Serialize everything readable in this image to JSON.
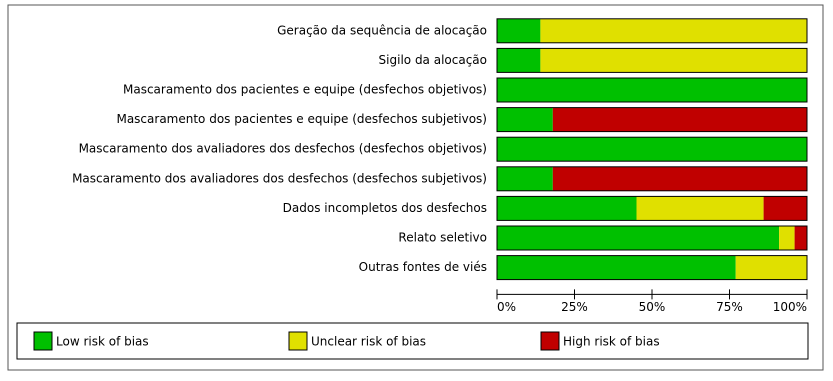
{
  "chart_data": {
    "type": "stacked-bar-horizontal",
    "categories": [
      "Geração da sequência de alocação",
      "Sigilo da alocação",
      "Mascaramento dos pacientes e equipe (desfechos objetivos)",
      "Mascaramento dos pacientes e equipe (desfechos subjetivos)",
      "Mascaramento dos avaliadores dos desfechos (desfechos objetivos)",
      "Mascaramento dos avaliadores dos desfechos (desfechos subjetivos)",
      "Dados incompletos dos desfechos",
      "Relato seletivo",
      "Outras fontes de viés"
    ],
    "series": [
      {
        "name": "Low risk of bias",
        "color": "#00c000",
        "values": [
          14,
          14,
          100,
          18,
          100,
          18,
          45,
          91,
          77
        ]
      },
      {
        "name": "Unclear risk of bias",
        "color": "#e0e000",
        "values": [
          86,
          86,
          0,
          0,
          0,
          0,
          41,
          5,
          23
        ]
      },
      {
        "name": "High risk of bias",
        "color": "#c00000",
        "values": [
          0,
          0,
          0,
          82,
          0,
          82,
          14,
          4,
          0
        ]
      }
    ],
    "xlim": [
      0,
      100
    ],
    "xticks": [
      {
        "value": 0,
        "label": "0%"
      },
      {
        "value": 25,
        "label": "25%"
      },
      {
        "value": 50,
        "label": "50%"
      },
      {
        "value": 75,
        "label": "75%"
      },
      {
        "value": 100,
        "label": "100%"
      }
    ]
  }
}
